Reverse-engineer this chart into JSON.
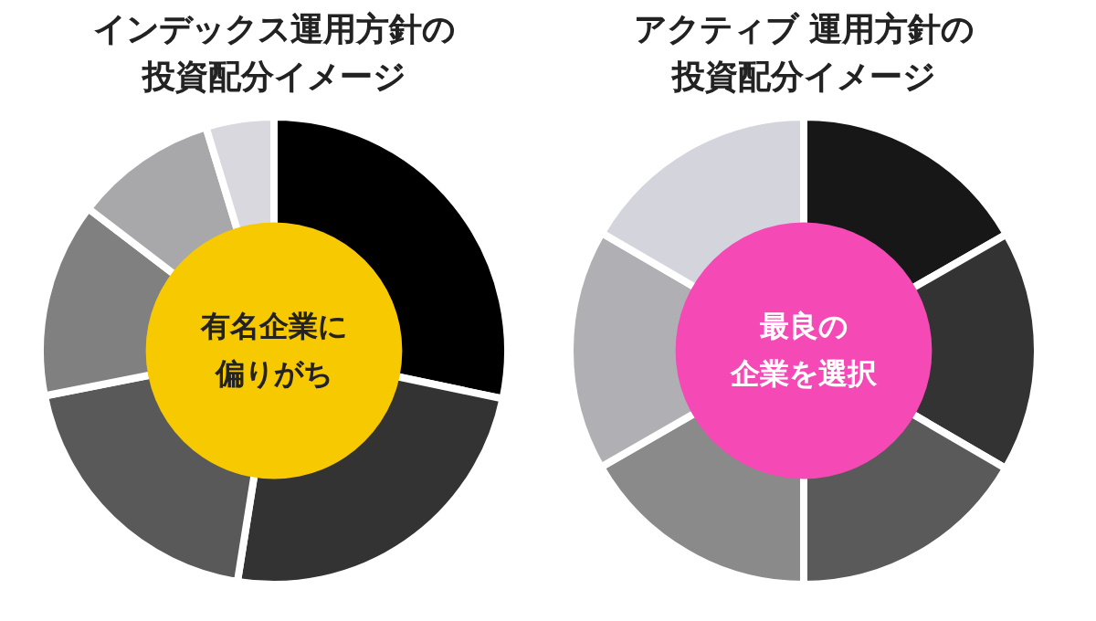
{
  "chart_data": [
    {
      "type": "donut",
      "title": "インデックス運用方針の投資配分イメージ",
      "categories": [
        null,
        null,
        null,
        null,
        null,
        null
      ],
      "values": [
        28.3,
        24.2,
        19.4,
        13.5,
        9.9,
        4.7
      ],
      "colors": [
        "#000000",
        "#333333",
        "#595959",
        "#808080",
        "#a8a8aa",
        "#d8d8de"
      ],
      "legend": false,
      "annotations": [
        "有名企業に",
        "偏りがち"
      ]
    },
    {
      "type": "donut",
      "title": "アクティブ 運用方針の投資配分イメージ",
      "categories": [
        null,
        null,
        null,
        null,
        null,
        null
      ],
      "values": [
        16.7,
        16.7,
        16.6,
        16.7,
        16.7,
        16.6
      ],
      "colors": [
        "#171717",
        "#333333",
        "#5a5a5a",
        "#8a8a8a",
        "#b0b0b4",
        "#d4d4dc"
      ],
      "legend": false,
      "annotations": [
        "最良の",
        "企業を選択"
      ]
    }
  ]
}
